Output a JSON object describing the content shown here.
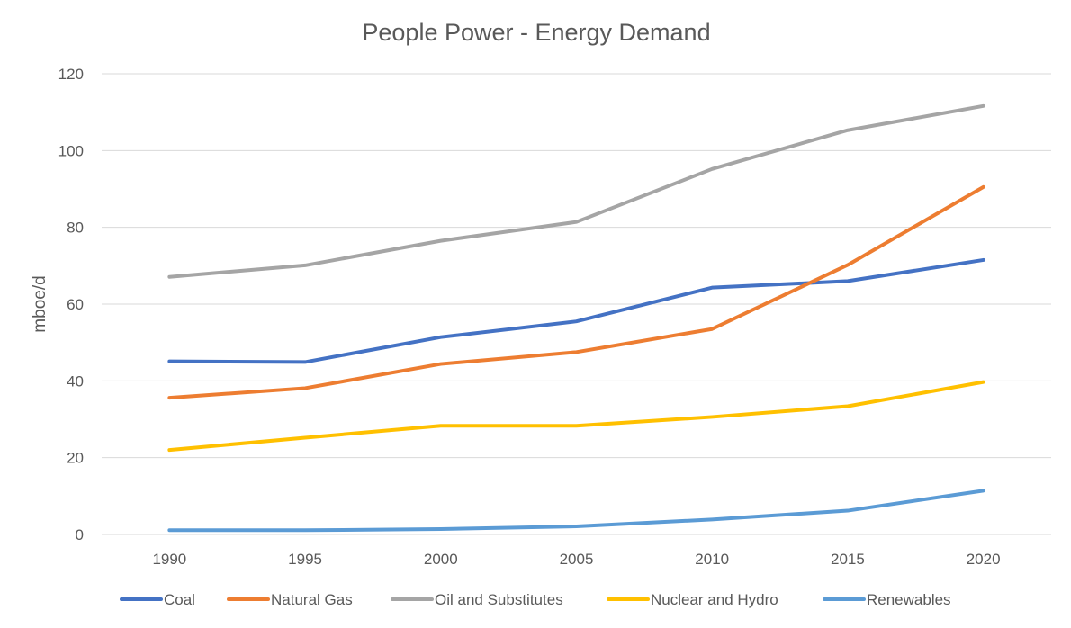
{
  "chart_data": {
    "type": "line",
    "title": "People Power - Energy Demand",
    "xlabel": "",
    "ylabel": "mboe/d",
    "x": [
      "1990",
      "1995",
      "2000",
      "2005",
      "2010",
      "2015",
      "2020"
    ],
    "ylim": [
      0,
      120
    ],
    "yticks": [
      0,
      20,
      40,
      60,
      80,
      100,
      120
    ],
    "grid": true,
    "legend_position": "bottom",
    "series": [
      {
        "name": "Coal",
        "color": "#4472c4",
        "values": [
          45.1,
          44.9,
          51.4,
          55.5,
          64.3,
          66.0,
          71.5
        ]
      },
      {
        "name": "Natural Gas",
        "color": "#ed7d31",
        "values": [
          35.6,
          38.1,
          44.4,
          47.5,
          53.5,
          70.2,
          90.5
        ]
      },
      {
        "name": "Oil and Substitutes",
        "color": "#a5a5a5",
        "values": [
          67.1,
          70.1,
          76.5,
          81.4,
          95.2,
          105.3,
          111.6
        ]
      },
      {
        "name": "Nuclear and Hydro",
        "color": "#ffc000",
        "values": [
          22.0,
          25.2,
          28.3,
          28.3,
          30.6,
          33.4,
          39.7
        ]
      },
      {
        "name": "Renewables",
        "color": "#5b9bd5",
        "values": [
          1.1,
          1.1,
          1.4,
          2.1,
          3.9,
          6.2,
          11.4
        ]
      }
    ]
  }
}
